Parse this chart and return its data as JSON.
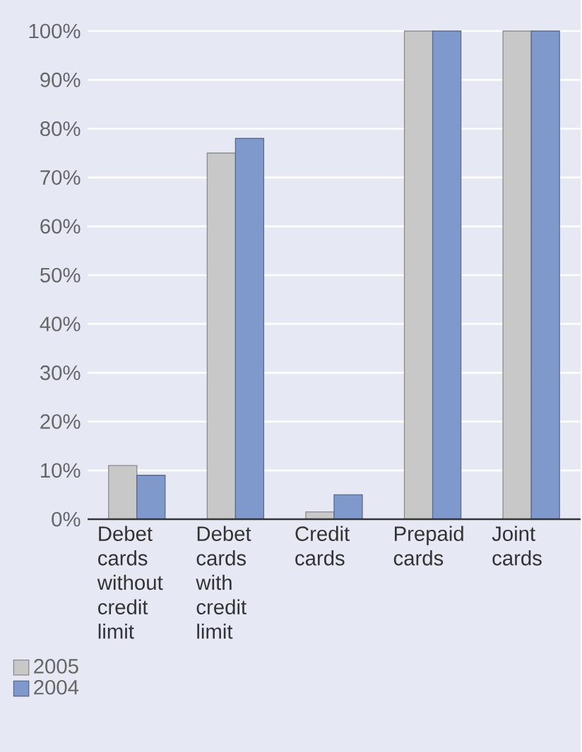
{
  "chart_data": {
    "type": "bar",
    "categories": [
      "Debet cards without credit limit",
      "Debet cards with credit limit",
      "Credit cards",
      "Prepaid cards",
      "Joint cards"
    ],
    "series": [
      {
        "name": "2005",
        "color": "#c8c8c8",
        "values": [
          11,
          75,
          1.5,
          100,
          100
        ]
      },
      {
        "name": "2004",
        "color": "#8099cc",
        "values": [
          9,
          78,
          5,
          100,
          100
        ]
      }
    ],
    "ylim": [
      0,
      100
    ],
    "yticks": [
      {
        "value": 0,
        "label": "0%"
      },
      {
        "value": 10,
        "label": "10%"
      },
      {
        "value": 20,
        "label": "20%"
      },
      {
        "value": 30,
        "label": "30%"
      },
      {
        "value": 40,
        "label": "40%"
      },
      {
        "value": 50,
        "label": "50%"
      },
      {
        "value": 60,
        "label": "60%"
      },
      {
        "value": 70,
        "label": "70%"
      },
      {
        "value": 80,
        "label": "80%"
      },
      {
        "value": 90,
        "label": "90%"
      },
      {
        "value": 100,
        "label": "100%"
      }
    ],
    "grid": "y",
    "legend": "bottom left"
  }
}
